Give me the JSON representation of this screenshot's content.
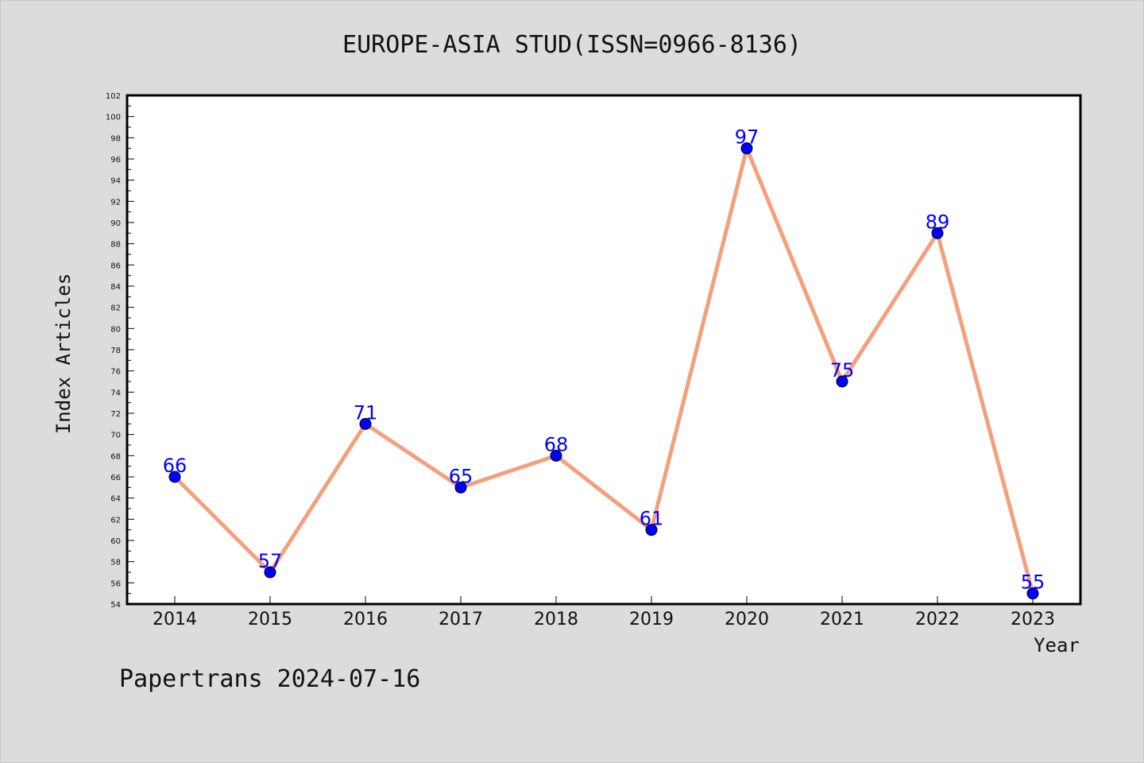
{
  "chart_data": {
    "type": "line",
    "title": "EUROPE-ASIA STUD(ISSN=0966-8136)",
    "xlabel": "Year",
    "ylabel": "Index Articles",
    "footer": "Papertrans 2024-07-16",
    "categories": [
      "2014",
      "2015",
      "2016",
      "2017",
      "2018",
      "2019",
      "2020",
      "2021",
      "2022",
      "2023"
    ],
    "series": [
      {
        "values": [
          66,
          57,
          71,
          65,
          68,
          61,
          97,
          75,
          89,
          55
        ]
      }
    ],
    "ylim": [
      54,
      102
    ],
    "ytick_step": 2,
    "grid": false,
    "colors": {
      "line": "#f4a07c",
      "marker": "#0000ff",
      "label": "#0000ff",
      "background": "#dcdcdc",
      "plot_background": "#ffffff"
    }
  }
}
